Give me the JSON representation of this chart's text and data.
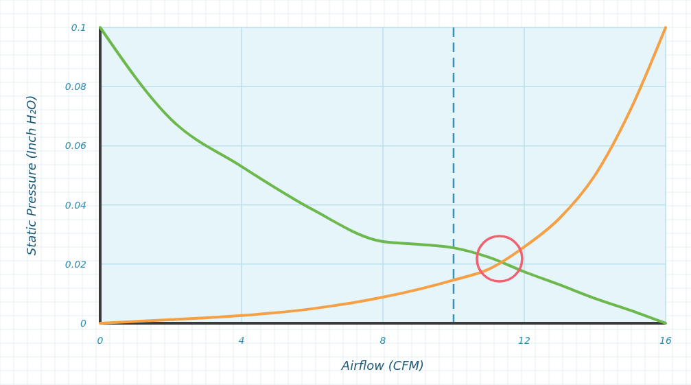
{
  "chart_data": {
    "type": "line",
    "xlabel": "Airflow (CFM)",
    "ylabel": "Static Pressure (Inch H₂O)",
    "xlim": [
      0,
      16
    ],
    "ylim": [
      0,
      0.1
    ],
    "xticks": [
      0,
      4,
      8,
      12,
      16
    ],
    "yticks": [
      0,
      0.02,
      0.04,
      0.06,
      0.08,
      0.1
    ],
    "grid": true,
    "line_style": "solid",
    "marker": "none",
    "series": [
      {
        "color": "#6cb84c",
        "x": [
          0,
          2,
          4,
          6,
          8,
          9,
          10,
          11,
          12,
          13,
          14,
          15,
          16
        ],
        "values": [
          0.1,
          0.069,
          0.053,
          0.0385,
          0.0276,
          0.0267,
          0.0255,
          0.0223,
          0.0174,
          0.013,
          0.0084,
          0.0044,
          0
        ]
      },
      {
        "color": "#f5a044",
        "x": [
          0,
          2,
          4,
          6,
          8,
          10,
          11,
          12,
          13,
          14,
          15,
          16
        ],
        "values": [
          0,
          0.0012,
          0.0026,
          0.0049,
          0.0088,
          0.0146,
          0.0183,
          0.0258,
          0.0355,
          0.05,
          0.072,
          0.1
        ]
      }
    ],
    "ref_lines": [
      {
        "axis": "x",
        "value": 10,
        "color": "#3a8fb5",
        "line_style": "dashed"
      }
    ]
  }
}
